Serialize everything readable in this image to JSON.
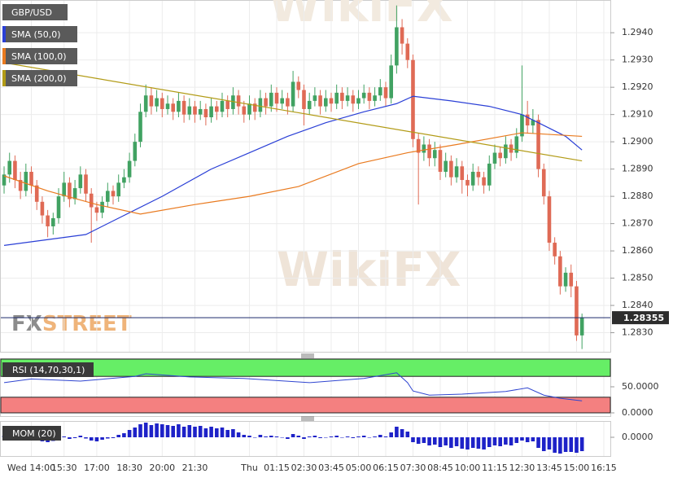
{
  "chart_data": [
    {
      "type": "candlestick",
      "grid": true,
      "xlim": [
        -0.75,
        111.2
      ],
      "xticks": [
        {
          "value": 5,
          "label": "Wed 14:00"
        },
        {
          "value": 11,
          "label": "15:30"
        },
        {
          "value": 17,
          "label": "17:00"
        },
        {
          "value": 23,
          "label": "18:30"
        },
        {
          "value": 29,
          "label": "20:00"
        },
        {
          "value": 35,
          "label": "21:30"
        },
        {
          "value": 45,
          "label": "Thu"
        },
        {
          "value": 50,
          "label": "01:15"
        },
        {
          "value": 55,
          "label": "02:30"
        },
        {
          "value": 60,
          "label": "03:45"
        },
        {
          "value": 65,
          "label": "05:00"
        },
        {
          "value": 70,
          "label": "06:15"
        },
        {
          "value": 75,
          "label": "07:30"
        },
        {
          "value": 80,
          "label": "08:45"
        },
        {
          "value": 85,
          "label": "10:00"
        },
        {
          "value": 90,
          "label": "11:15"
        },
        {
          "value": 95,
          "label": "12:30"
        },
        {
          "value": 100,
          "label": "13:45"
        },
        {
          "value": 105,
          "label": "15:00"
        },
        {
          "value": 110,
          "label": "16:15"
        }
      ],
      "ylim": [
        1.2823,
        1.2952
      ],
      "yticks": [
        {
          "value": 1.283,
          "label": "1.2830"
        },
        {
          "value": 1.284,
          "label": "1.2840"
        },
        {
          "value": 1.285,
          "label": "1.2850"
        },
        {
          "value": 1.286,
          "label": "1.2860"
        },
        {
          "value": 1.287,
          "label": "1.2870"
        },
        {
          "value": 1.288,
          "label": "1.2880"
        },
        {
          "value": 1.289,
          "label": "1.2890"
        },
        {
          "value": 1.29,
          "label": "1.2900"
        },
        {
          "value": 1.291,
          "label": "1.2910"
        },
        {
          "value": 1.292,
          "label": "1.2920"
        },
        {
          "value": 1.293,
          "label": "1.2930"
        },
        {
          "value": 1.294,
          "label": "1.2940"
        }
      ],
      "watermark": [
        "FX",
        "STREET"
      ],
      "watermark_2": "WikiFX",
      "series": [
        {
          "name": "GBP/USD",
          "up_color": "#41a262",
          "down_color": "#df6a55",
          "open": [
            1.2884,
            1.2888,
            1.2893,
            1.2886,
            1.2882,
            1.2889,
            1.2884,
            1.2878,
            1.2873,
            1.2869,
            1.2872,
            1.288,
            1.2885,
            1.2879,
            1.2883,
            1.2888,
            1.2881,
            1.2876,
            1.2874,
            1.2878,
            1.2882,
            1.288,
            1.2885,
            1.2887,
            1.2893,
            1.29,
            1.2911,
            1.2917,
            1.2913,
            1.2916,
            1.2912,
            1.2914,
            1.2911,
            1.2915,
            1.291,
            1.2913,
            1.291,
            1.2912,
            1.2909,
            1.2913,
            1.2911,
            1.2915,
            1.2912,
            1.2917,
            1.2913,
            1.291,
            1.2914,
            1.2911,
            1.2916,
            1.2913,
            1.2918,
            1.2914,
            1.2916,
            1.2913,
            1.2922,
            1.2919,
            1.2912,
            1.2915,
            1.2917,
            1.2913,
            1.2916,
            1.2914,
            1.2918,
            1.2915,
            1.2917,
            1.2914,
            1.2916,
            1.2918,
            1.2915,
            1.2917,
            1.292,
            1.2916,
            1.2928,
            1.2942,
            1.2936,
            1.293,
            1.2901,
            1.2896,
            1.2899,
            1.2894,
            1.2897,
            1.2889,
            1.2893,
            1.2887,
            1.2891,
            1.2886,
            1.2884,
            1.2889,
            1.2887,
            1.2884,
            1.2892,
            1.2896,
            1.2894,
            1.2899,
            1.2896,
            1.2902,
            1.291,
            1.2906,
            1.2908,
            1.289,
            1.288,
            1.2863,
            1.2858,
            1.2847,
            1.2852,
            1.2847,
            1.2829
          ],
          "high": [
            1.2891,
            1.2896,
            1.2895,
            1.2889,
            1.2892,
            1.2891,
            1.2886,
            1.288,
            1.2875,
            1.2874,
            1.2883,
            1.2889,
            1.2887,
            1.2886,
            1.2891,
            1.289,
            1.2883,
            1.2878,
            1.288,
            1.2885,
            1.2884,
            1.2888,
            1.289,
            1.2896,
            1.2903,
            1.2914,
            1.2921,
            1.292,
            1.2919,
            1.2918,
            1.2917,
            1.2916,
            1.2918,
            1.2917,
            1.2916,
            1.2915,
            1.2915,
            1.2914,
            1.2916,
            1.2915,
            1.2918,
            1.2917,
            1.292,
            1.2919,
            1.2915,
            1.2917,
            1.2916,
            1.2919,
            1.2918,
            1.2921,
            1.292,
            1.2919,
            1.2918,
            1.2926,
            1.2924,
            1.2921,
            1.2918,
            1.292,
            1.2919,
            1.2919,
            1.2918,
            1.2921,
            1.292,
            1.292,
            1.2919,
            1.2919,
            1.2921,
            1.292,
            1.292,
            1.2923,
            1.2922,
            1.2932,
            1.295,
            1.2945,
            1.2938,
            1.2932,
            1.2903,
            1.2902,
            1.2901,
            1.29,
            1.2899,
            1.2896,
            1.2895,
            1.2894,
            1.2893,
            1.2888,
            1.2892,
            1.2891,
            1.2889,
            1.2895,
            1.2899,
            1.2898,
            1.2902,
            1.2901,
            1.2905,
            1.2928,
            1.2915,
            1.2912,
            1.291,
            1.2892,
            1.2882,
            1.2865,
            1.286,
            1.2854,
            1.2855,
            1.2849,
            1.2837
          ],
          "low": [
            1.2881,
            1.2885,
            1.2883,
            1.2879,
            1.288,
            1.2881,
            1.2875,
            1.287,
            1.2865,
            1.2866,
            1.287,
            1.2878,
            1.2876,
            1.2877,
            1.2881,
            1.2878,
            1.2863,
            1.2871,
            1.2872,
            1.2876,
            1.2877,
            1.2878,
            1.2883,
            1.2885,
            1.2891,
            1.2898,
            1.2909,
            1.291,
            1.2911,
            1.2909,
            1.291,
            1.2908,
            1.2909,
            1.2907,
            1.2908,
            1.2907,
            1.2908,
            1.2906,
            1.2907,
            1.2908,
            1.2909,
            1.2909,
            1.291,
            1.291,
            1.2907,
            1.2908,
            1.2908,
            1.2909,
            1.291,
            1.2911,
            1.2911,
            1.2912,
            1.291,
            1.2911,
            1.2916,
            1.2906,
            1.291,
            1.2913,
            1.291,
            1.2911,
            1.2911,
            1.2912,
            1.2912,
            1.2913,
            1.2911,
            1.2912,
            1.2914,
            1.2912,
            1.2913,
            1.2915,
            1.2913,
            1.2914,
            1.2925,
            1.2932,
            1.2927,
            1.2898,
            1.2877,
            1.2893,
            1.2891,
            1.2891,
            1.2886,
            1.2887,
            1.2884,
            1.2885,
            1.2881,
            1.288,
            1.2882,
            1.2884,
            1.2881,
            1.2882,
            1.289,
            1.2891,
            1.2892,
            1.2893,
            1.2894,
            1.29,
            1.2903,
            1.2903,
            1.2887,
            1.2877,
            1.286,
            1.2855,
            1.2844,
            1.2845,
            1.2843,
            1.2827,
            1.2824
          ],
          "close": [
            1.2888,
            1.2893,
            1.2886,
            1.2882,
            1.2889,
            1.2884,
            1.2878,
            1.2873,
            1.2869,
            1.2872,
            1.288,
            1.2885,
            1.2879,
            1.2883,
            1.2888,
            1.2881,
            1.2876,
            1.2874,
            1.2878,
            1.2882,
            1.288,
            1.2885,
            1.2887,
            1.2893,
            1.29,
            1.2911,
            1.2917,
            1.2913,
            1.2916,
            1.2912,
            1.2914,
            1.2911,
            1.2915,
            1.291,
            1.2913,
            1.291,
            1.2912,
            1.2909,
            1.2913,
            1.2911,
            1.2915,
            1.2912,
            1.2917,
            1.2913,
            1.291,
            1.2914,
            1.2911,
            1.2916,
            1.2913,
            1.2918,
            1.2914,
            1.2916,
            1.2913,
            1.2922,
            1.2919,
            1.2912,
            1.2915,
            1.2917,
            1.2913,
            1.2916,
            1.2914,
            1.2918,
            1.2915,
            1.2917,
            1.2914,
            1.2916,
            1.2918,
            1.2915,
            1.2917,
            1.292,
            1.2916,
            1.2928,
            1.2942,
            1.2936,
            1.293,
            1.2901,
            1.2896,
            1.2899,
            1.2894,
            1.2897,
            1.2889,
            1.2893,
            1.2887,
            1.2891,
            1.2886,
            1.2884,
            1.2889,
            1.2887,
            1.2884,
            1.2892,
            1.2896,
            1.2894,
            1.2899,
            1.2896,
            1.2902,
            1.291,
            1.2906,
            1.2908,
            1.289,
            1.288,
            1.2863,
            1.2858,
            1.2847,
            1.2852,
            1.2847,
            1.2829,
            1.28355
          ]
        },
        {
          "name": "SMA (50,0)",
          "color": "#2a3fd6",
          "x": [
            0,
            15,
            29,
            38,
            45,
            52,
            59,
            66,
            72,
            75,
            82,
            89,
            95,
            99,
            103,
            106
          ],
          "values": [
            1.2862,
            1.2866,
            1.288,
            1.289,
            1.2896,
            1.2902,
            1.2907,
            1.2911,
            1.2914,
            1.29167,
            1.2915,
            1.2913,
            1.291,
            1.2906,
            1.2902,
            1.2897
          ]
        },
        {
          "name": "SMA (100,0)",
          "color": "#e97a1f",
          "x": [
            0,
            8,
            17,
            25,
            35,
            45,
            54,
            65,
            74,
            83,
            95,
            106
          ],
          "values": [
            1.28875,
            1.2882,
            1.2877,
            1.28735,
            1.2877,
            1.288,
            1.28836,
            1.2892,
            1.2896,
            1.2899,
            1.29033,
            1.2902
          ]
        },
        {
          "name": "SMA (200,0)",
          "color": "#b29b16",
          "x": [
            0,
            53,
            106
          ],
          "values": [
            1.2929,
            1.2911,
            1.2893
          ]
        }
      ]
    },
    {
      "type": "line",
      "title": "RSI (14,70,30,1)",
      "ylim": [
        0,
        104.7
      ],
      "yticks": [
        {
          "value": 0,
          "label": "0.0000"
        },
        {
          "value": 50,
          "label": "50.0000"
        }
      ],
      "overbought": 70,
      "oversold": 30,
      "band_colors": [
        "#66ee66",
        "#f48080"
      ],
      "series": [
        {
          "color": "#2f45d0",
          "x": [
            0,
            5,
            14,
            24,
            26,
            34,
            44,
            56,
            66,
            72,
            74,
            75,
            78,
            84,
            92,
            96,
            99,
            102,
            106
          ],
          "values": [
            58,
            65,
            61,
            70,
            75,
            69,
            66,
            58,
            66,
            77,
            58,
            42,
            34,
            36,
            41,
            48,
            34,
            28,
            23
          ]
        }
      ]
    },
    {
      "type": "bar",
      "title": "MOM (20)",
      "ylim": [
        -0.0046,
        0.004
      ],
      "color": "#1e22c8",
      "yticks": [
        {
          "value": 0,
          "label": "0.0000"
        }
      ],
      "values": [
        0.0004,
        0.0006,
        -0.0004,
        -0.0006,
        0.0003,
        -0.0005,
        -0.0008,
        -0.001,
        -0.0012,
        -0.0009,
        -0.0004,
        0.0002,
        -0.0004,
        -0.0002,
        0.0004,
        -0.0003,
        -0.0008,
        -0.001,
        -0.0006,
        -0.0003,
        -0.0002,
        0.0006,
        0.001,
        0.0018,
        0.0024,
        0.0032,
        0.0036,
        0.003,
        0.0034,
        0.0032,
        0.003,
        0.0028,
        0.0032,
        0.0026,
        0.003,
        0.0026,
        0.0028,
        0.0022,
        0.0026,
        0.0022,
        0.0024,
        0.0018,
        0.002,
        0.0012,
        0.0006,
        0.0004,
        0.0,
        0.0006,
        0.0002,
        0.0004,
        0.0002,
        0.0,
        -0.0004,
        0.0008,
        0.0004,
        -0.0004,
        0.0002,
        0.0004,
        -0.0002,
        0.0,
        0.0002,
        0.0004,
        0.0,
        0.0002,
        -0.0002,
        0.0002,
        0.0004,
        0.0,
        0.0002,
        0.0006,
        0.0002,
        0.0012,
        0.0026,
        0.002,
        0.0014,
        -0.0012,
        -0.0016,
        -0.0014,
        -0.002,
        -0.0018,
        -0.0024,
        -0.002,
        -0.0026,
        -0.0022,
        -0.0028,
        -0.003,
        -0.0026,
        -0.0028,
        -0.003,
        -0.0024,
        -0.002,
        -0.0022,
        -0.0018,
        -0.002,
        -0.0014,
        -0.0008,
        -0.0012,
        -0.001,
        -0.0026,
        -0.0034,
        -0.003,
        -0.0038,
        -0.004,
        -0.0036,
        -0.0036,
        -0.0038,
        -0.0034
      ]
    }
  ]
}
